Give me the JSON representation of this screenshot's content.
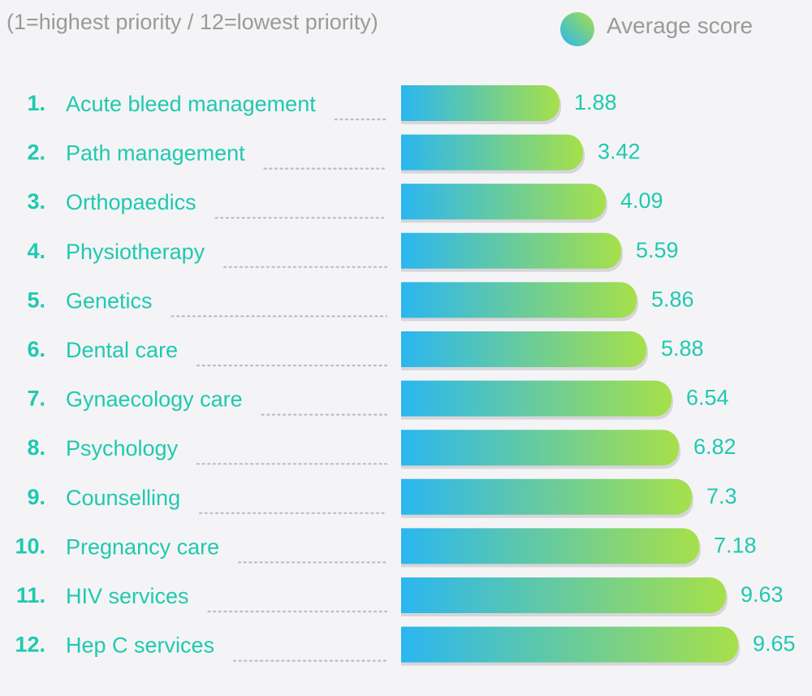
{
  "subtitle": "(1=highest priority / 12=lowest priority)",
  "legend": {
    "label": "Average score",
    "swatch-icon": "gradient-circle"
  },
  "colors": {
    "text_accent": "#1fc9b0",
    "gradient_start": "#2ab6f0",
    "gradient_end": "#a6e04a",
    "shadow": "#d6d6d9",
    "muted": "#9a9a9a",
    "leader": "#bdbdbd"
  },
  "chart_data": {
    "type": "bar",
    "orientation": "horizontal",
    "title": "",
    "subtitle": "(1=highest priority / 12=lowest priority)",
    "xlabel": "",
    "ylabel": "",
    "legend": [
      "Average score"
    ],
    "legend_position": "top-right",
    "grid": false,
    "xlim": [
      0,
      10
    ],
    "ranks": [
      "1.",
      "2.",
      "3.",
      "4.",
      "5.",
      "6.",
      "7.",
      "8.",
      "9.",
      "10.",
      "11.",
      "12."
    ],
    "categories": [
      "Acute bleed management",
      "Path management",
      "Orthopaedics",
      "Physiotherapy",
      "Genetics",
      "Dental care",
      "Gynaecology care",
      "Psychology",
      "Counselling",
      "Pregnancy care",
      "HIV services",
      "Hep C services"
    ],
    "values": [
      1.88,
      3.42,
      4.09,
      5.59,
      5.86,
      5.88,
      6.54,
      6.82,
      7.3,
      7.18,
      9.63,
      9.65
    ],
    "value_labels": [
      "1.88",
      "3.42",
      "4.09",
      "5.59",
      "5.86",
      "5.88",
      "6.54",
      "6.82",
      "7.3",
      "7.18",
      "9.63",
      "9.65"
    ],
    "bar_lengths_in_axis_units": [
      1.95,
      2.24,
      2.52,
      2.71,
      2.9,
      3.02,
      3.33,
      3.42,
      3.58,
      3.67,
      4.0,
      4.15
    ]
  }
}
